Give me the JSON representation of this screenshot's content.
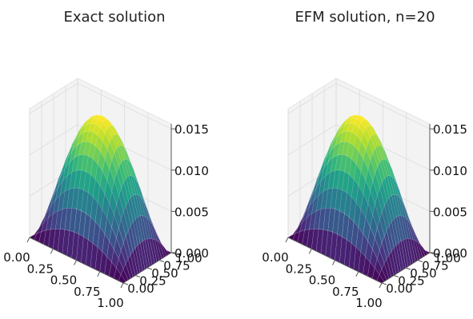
{
  "chart_data": [
    {
      "type": "surface",
      "title": "Exact solution",
      "function": "x*y*(1-x)*(1-y)/4",
      "x_range": [
        0,
        1
      ],
      "y_range": [
        0,
        1
      ],
      "zlim": [
        0,
        0.0156
      ],
      "colormap": "viridis",
      "x_ticks": [
        "0.00",
        "0.25",
        "0.50",
        "0.75",
        "1.00"
      ],
      "y_ticks": [
        "0.00",
        "0.25",
        "0.50",
        "0.75",
        "1.00"
      ],
      "z_ticks": [
        "0.000",
        "0.005",
        "0.010",
        "0.015"
      ],
      "z_values": [
        0,
        0.005,
        0.01,
        0.015
      ]
    },
    {
      "type": "surface",
      "title": "EFM solution, n=20",
      "function": "x*y*(1-x)*(1-y)/4",
      "x_range": [
        0,
        1
      ],
      "y_range": [
        0,
        1
      ],
      "zlim": [
        0,
        0.0156
      ],
      "colormap": "viridis",
      "x_ticks": [
        "0.00",
        "0.25",
        "0.50",
        "0.75",
        "1.00"
      ],
      "y_ticks": [
        "0.00",
        "0.25",
        "0.50",
        "0.75",
        "1.00"
      ],
      "z_ticks": [
        "0.000",
        "0.005",
        "0.010",
        "0.015"
      ],
      "z_values": [
        0,
        0.005,
        0.01,
        0.015
      ]
    }
  ]
}
